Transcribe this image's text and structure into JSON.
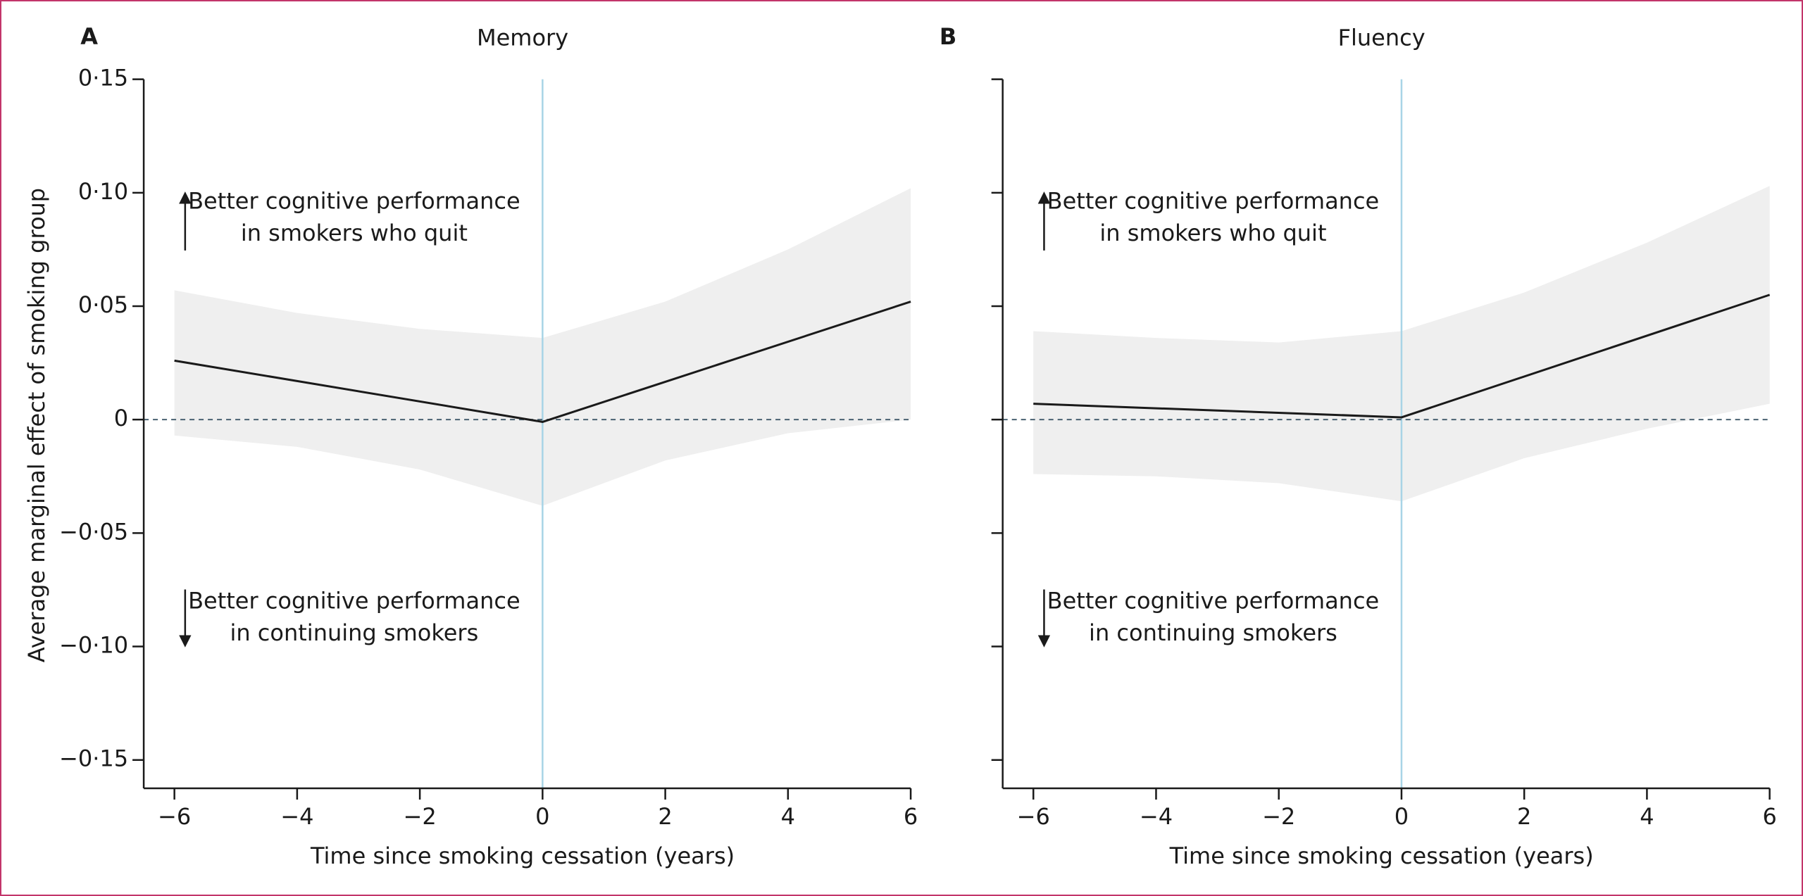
{
  "chart_data": [
    {
      "type": "line",
      "panel": "A",
      "title": "Memory",
      "ylabel": "Average marginal effect of smoking group",
      "xlabel": "Time since smoking cessation (years)",
      "x": [
        -6,
        0,
        6
      ],
      "series": [
        {
          "color": "#1a1a1a",
          "values": [
            0.026,
            -0.001,
            0.052
          ]
        }
      ],
      "band": {
        "color": "#efefef",
        "x": [
          -6,
          -4,
          -2,
          0,
          2,
          4,
          6
        ],
        "upper": [
          0.057,
          0.047,
          0.04,
          0.036,
          0.052,
          0.075,
          0.102
        ],
        "lower": [
          -0.007,
          -0.012,
          -0.022,
          -0.038,
          -0.018,
          -0.006,
          0
        ]
      },
      "reference_lines": {
        "x": 0,
        "x_color": "#a8d4e6",
        "y": 0,
        "y_color": "#4a6272",
        "y_dashed": true
      },
      "annotations": [
        {
          "arrow": "up",
          "lines": [
            "Better cognitive performance",
            "in smokers who quit"
          ]
        },
        {
          "arrow": "down",
          "lines": [
            "Better cognitive performance",
            "in continuing smokers"
          ]
        }
      ],
      "xlim": [
        -6.5,
        6
      ],
      "xticks": [
        {
          "value": -6,
          "label": "−6"
        },
        {
          "value": -4,
          "label": "−4"
        },
        {
          "value": -2,
          "label": "−2"
        },
        0,
        2,
        4,
        6
      ],
      "ylim": [
        -0.1625,
        0.15
      ],
      "yticks": [
        {
          "value": 0.15,
          "label": "0·15"
        },
        {
          "value": 0.1,
          "label": "0·10"
        },
        {
          "value": 0.05,
          "label": "0·05"
        },
        0,
        {
          "value": -0.05,
          "label": "−0·05"
        },
        {
          "value": -0.1,
          "label": "−0·10"
        },
        {
          "value": -0.15,
          "label": "−0·15"
        }
      ],
      "ytick_labels": true
    },
    {
      "type": "line",
      "panel": "B",
      "title": "Fluency",
      "xlabel": "Time since smoking cessation (years)",
      "x": [
        -6,
        0,
        6
      ],
      "series": [
        {
          "color": "#1a1a1a",
          "values": [
            0.007,
            0.001,
            0.055
          ]
        }
      ],
      "band": {
        "color": "#efefef",
        "x": [
          -6,
          -4,
          -2,
          0,
          2,
          4,
          6
        ],
        "upper": [
          0.039,
          0.036,
          0.034,
          0.039,
          0.056,
          0.078,
          0.103
        ],
        "lower": [
          -0.024,
          -0.025,
          -0.028,
          -0.036,
          -0.017,
          -0.004,
          0.007
        ]
      },
      "reference_lines": {
        "x": 0,
        "x_color": "#a8d4e6",
        "y": 0,
        "y_color": "#4a6272",
        "y_dashed": true
      },
      "annotations": [
        {
          "arrow": "up",
          "lines": [
            "Better cognitive performance",
            "in smokers who quit"
          ]
        },
        {
          "arrow": "down",
          "lines": [
            "Better cognitive performance",
            "in continuing smokers"
          ]
        }
      ],
      "xlim": [
        -6.5,
        6
      ],
      "xticks": [
        {
          "value": -6,
          "label": "−6"
        },
        {
          "value": -4,
          "label": "−4"
        },
        {
          "value": -2,
          "label": "−2"
        },
        0,
        2,
        4,
        6
      ],
      "ylim": [
        -0.1625,
        0.15
      ],
      "yticks": [
        0.15,
        0.1,
        0.05,
        0,
        -0.05,
        -0.1,
        -0.15
      ],
      "ytick_labels": false
    }
  ]
}
